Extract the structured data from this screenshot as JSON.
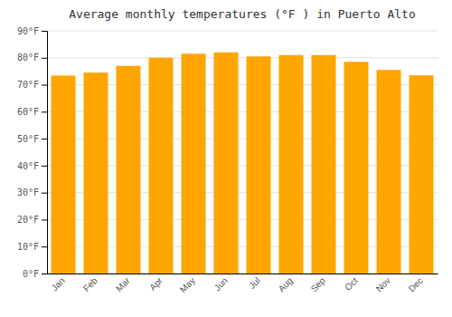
{
  "chart_data": {
    "type": "bar",
    "title": "Average monthly temperatures (°F ) in Puerto Alto",
    "categories": [
      "Jan",
      "Feb",
      "Mar",
      "Apr",
      "May",
      "Jun",
      "Jul",
      "Aug",
      "Sep",
      "Oct",
      "Nov",
      "Dec"
    ],
    "values": [
      73.4,
      74.5,
      77.0,
      80.0,
      81.5,
      82.0,
      80.5,
      81.0,
      81.0,
      78.5,
      75.5,
      73.5
    ],
    "color": "#FFA500",
    "ylim": [
      0,
      90
    ],
    "yticks": [
      {
        "value": 0,
        "label": "0°F"
      },
      {
        "value": 10,
        "label": "10°F"
      },
      {
        "value": 20,
        "label": "20°F"
      },
      {
        "value": 30,
        "label": "30°F"
      },
      {
        "value": 40,
        "label": "40°F"
      },
      {
        "value": 50,
        "label": "50°F"
      },
      {
        "value": 60,
        "label": "60°F"
      },
      {
        "value": 70,
        "label": "70°F"
      },
      {
        "value": 80,
        "label": "80°F"
      },
      {
        "value": 90,
        "label": "90°F"
      }
    ],
    "grid": true
  }
}
